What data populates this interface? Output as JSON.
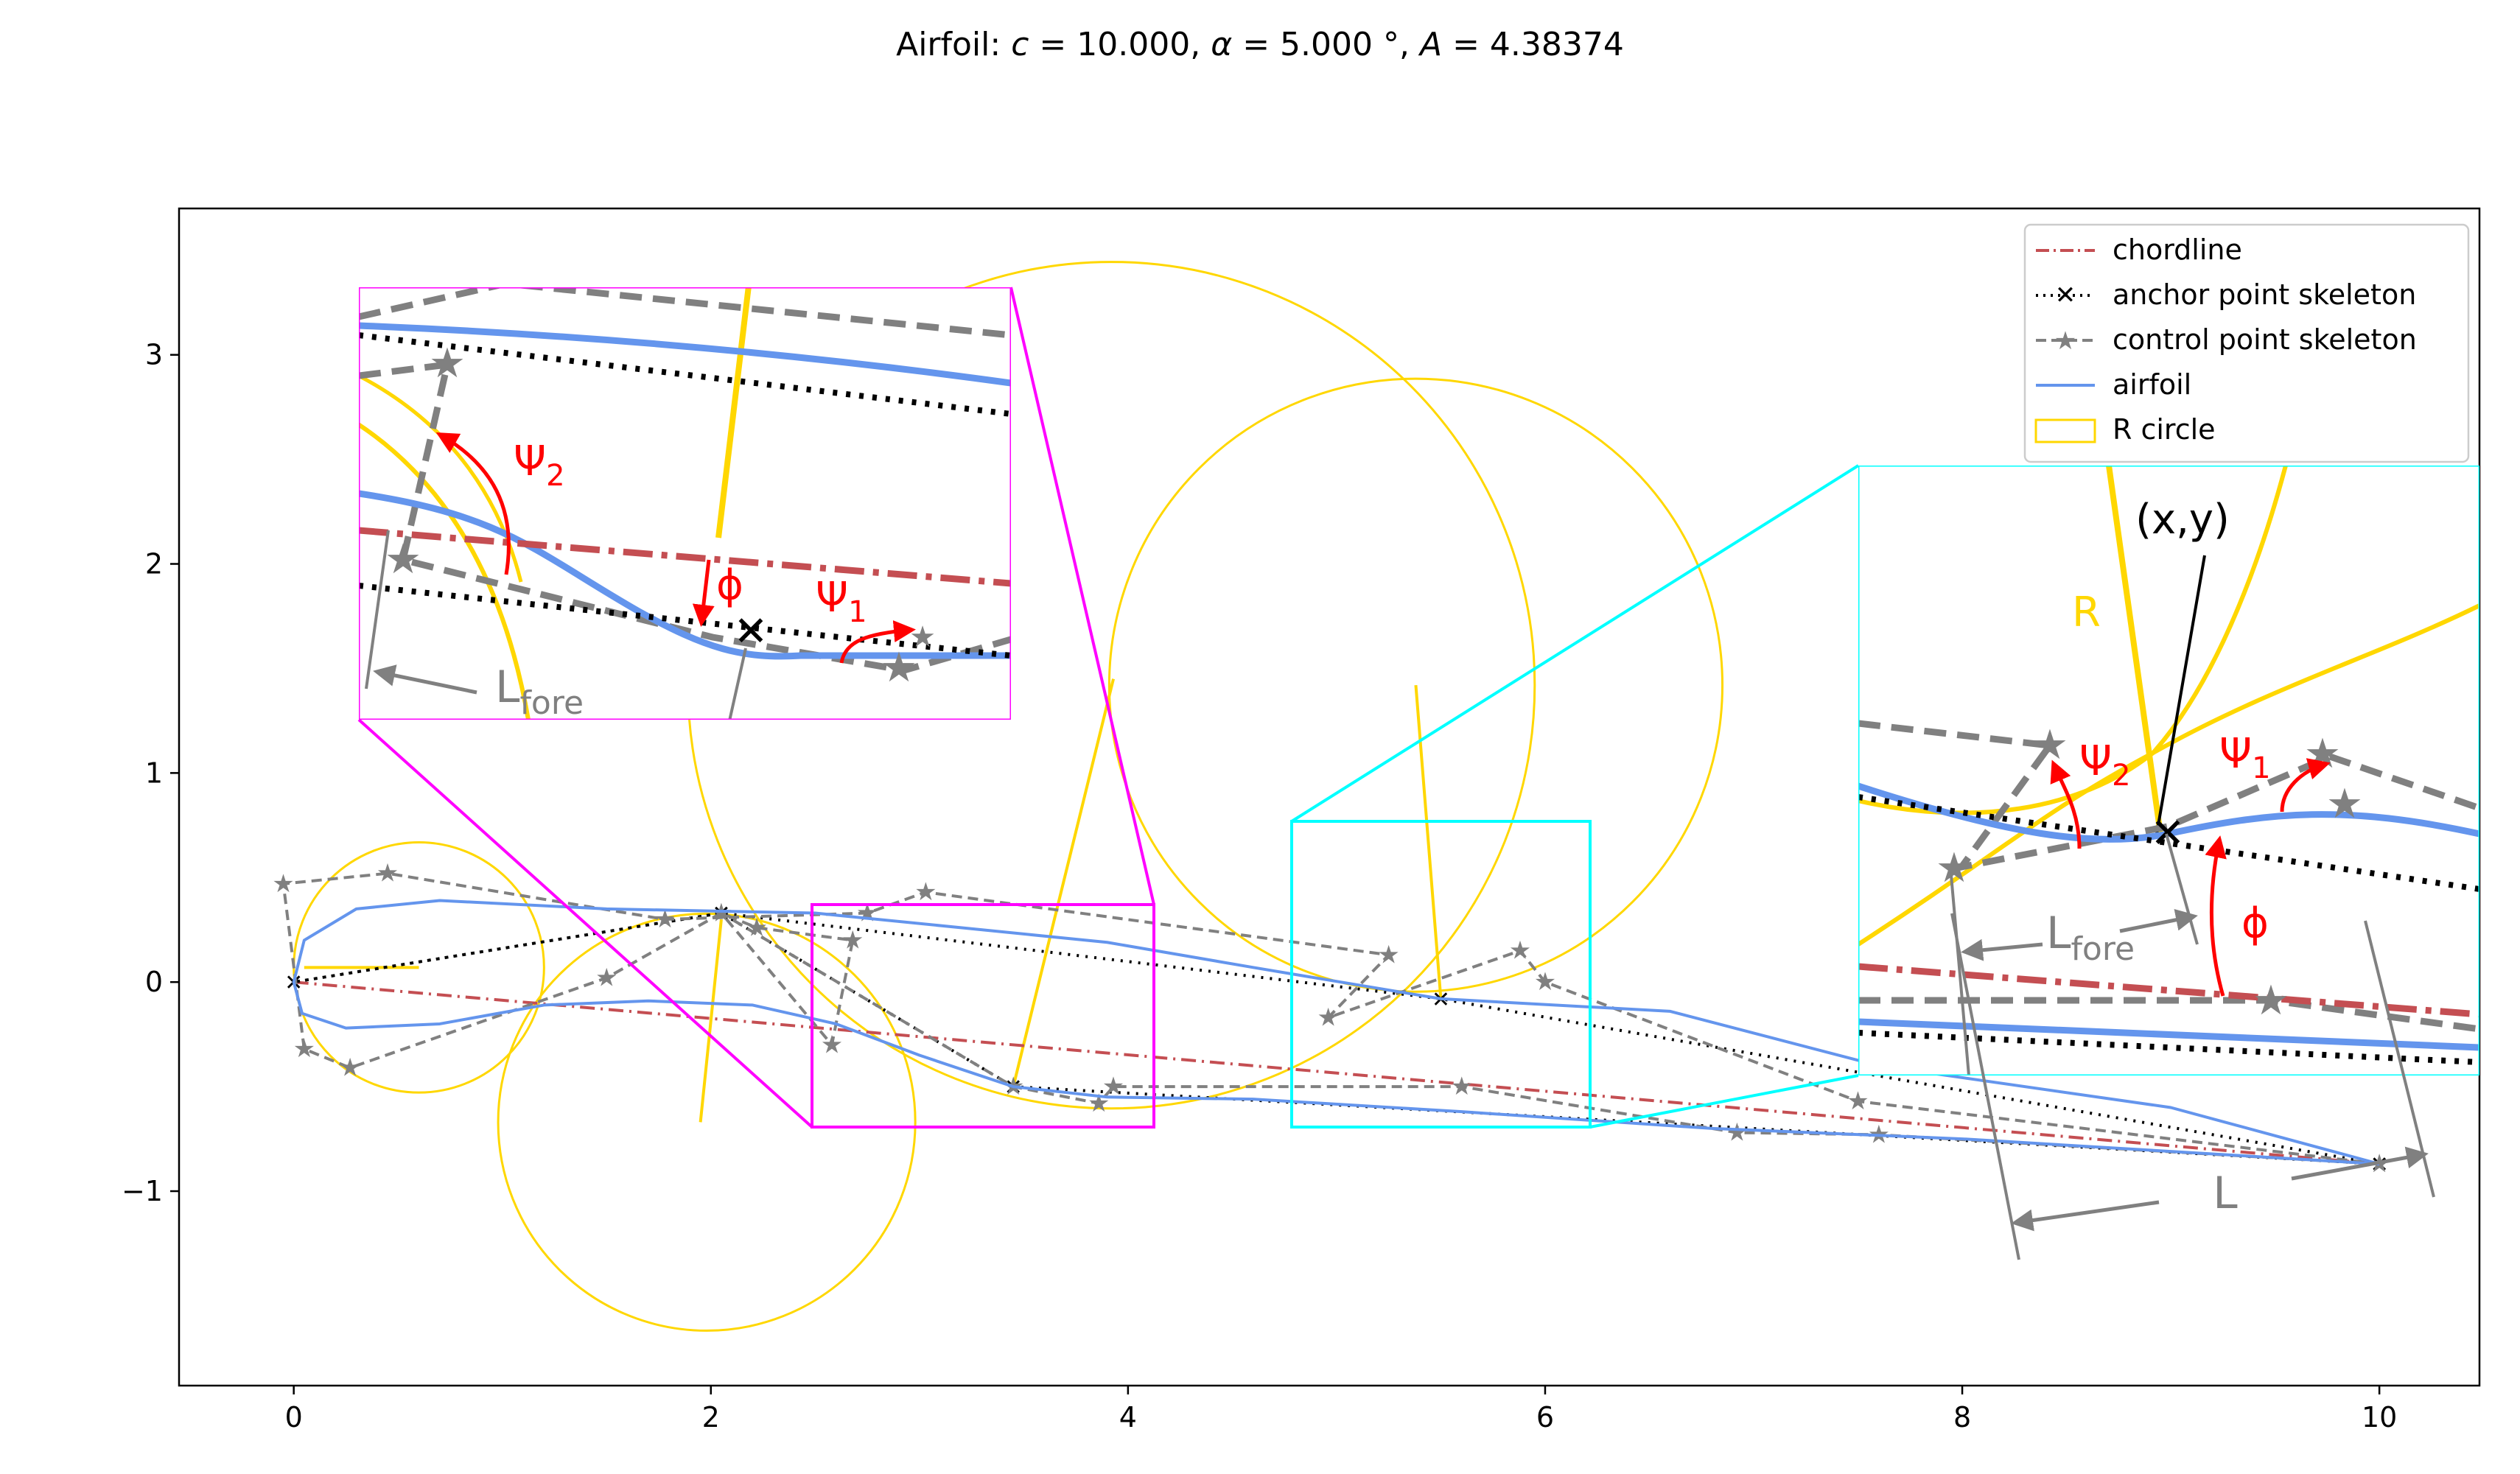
{
  "chart_data": {
    "type": "line",
    "title": "Airfoil: c = 10.000, α = 5.000 °, A = 4.38374",
    "title_parts": {
      "prefix": "Airfoil: ",
      "c_sym": "c",
      "c_val": " = 10.000, ",
      "alpha_sym": "α",
      "alpha_val": " = 5.000 °, ",
      "a_sym": "A",
      "a_val": " = 4.38374"
    },
    "xlabel": "",
    "ylabel": "",
    "xlim": [
      -0.55,
      10.48
    ],
    "ylim": [
      -1.93,
      3.7
    ],
    "grid": false,
    "legend_position": "top-right",
    "x_ticks": [
      0,
      2,
      4,
      6,
      8,
      10
    ],
    "x_tick_labels": [
      "0",
      "2",
      "4",
      "6",
      "8",
      "10"
    ],
    "y_ticks": [
      -1,
      0,
      1,
      2,
      3
    ],
    "y_tick_labels": [
      "−1",
      "0",
      "1",
      "2",
      "3"
    ],
    "colors": {
      "chordline": "#c44e52",
      "anchor": "#000000",
      "control": "#808080",
      "airfoil": "#6495ed",
      "r_circle": "#ffd700",
      "annot_red": "#ff0000",
      "inset1": "#ff00ff",
      "inset2": "#00ffff"
    },
    "series": [
      {
        "name": "chordline",
        "style": "dashdot",
        "x": [
          0,
          10
        ],
        "y": [
          0,
          -0.87
        ]
      },
      {
        "name": "anchor point skeleton",
        "style": "dotted-x",
        "x": [
          10,
          5.5,
          2.05,
          0,
          2.05,
          3.45,
          10
        ],
        "y": [
          -0.87,
          -0.08,
          0.33,
          0,
          0.33,
          -0.5,
          -0.87
        ]
      },
      {
        "name": "control point skeleton",
        "style": "dashed-star",
        "x": [
          10,
          7.5,
          6.0,
          5.88,
          4.96,
          5.25,
          3.03,
          2.75,
          1.78,
          0.45,
          -0.05,
          0.05,
          0.27,
          1.5,
          2.05,
          2.22,
          2.68,
          2.58,
          2.05,
          3.45,
          3.86,
          3.93,
          5.6,
          6.92,
          7.6,
          10
        ],
        "y": [
          -0.87,
          -0.57,
          0.0,
          0.15,
          -0.17,
          0.13,
          0.43,
          0.33,
          0.3,
          0.52,
          0.47,
          -0.32,
          -0.41,
          0.02,
          0.33,
          0.26,
          0.2,
          -0.3,
          0.33,
          -0.5,
          -0.58,
          -0.5,
          -0.5,
          -0.72,
          -0.73,
          -0.87
        ]
      },
      {
        "name": "airfoil",
        "style": "solid",
        "x": [
          10,
          9.0,
          7.6,
          6.6,
          5.5,
          4.6,
          3.9,
          3.2,
          2.5,
          1.5,
          0.7,
          0.3,
          0.05,
          0,
          0.04,
          0.25,
          0.7,
          1.2,
          1.7,
          2.2,
          2.6,
          3.0,
          3.45,
          3.9,
          4.6,
          5.6,
          6.8,
          8.0,
          10
        ],
        "y": [
          -0.87,
          -0.6,
          -0.4,
          -0.14,
          -0.08,
          0.07,
          0.19,
          0.26,
          0.33,
          0.35,
          0.39,
          0.35,
          0.2,
          0,
          -0.15,
          -0.22,
          -0.2,
          -0.11,
          -0.09,
          -0.11,
          -0.2,
          -0.35,
          -0.5,
          -0.55,
          -0.56,
          -0.62,
          -0.7,
          -0.75,
          -0.87
        ]
      },
      {
        "name": "R circle",
        "style": "circle",
        "shape": "circles"
      }
    ],
    "circles": [
      {
        "cx": 0.6,
        "cy": 0.07,
        "r": 0.6
      },
      {
        "cx": 1.98,
        "cy": -0.67,
        "r": 1.0
      },
      {
        "cx": 3.92,
        "cy": 1.42,
        "r": 2.03
      },
      {
        "cx": 5.38,
        "cy": 1.42,
        "r": 1.47
      }
    ],
    "legend": [
      "chordline",
      "anchor point skeleton",
      "control point skeleton",
      "airfoil",
      "R circle"
    ],
    "annotations": {
      "psi": "Ψ",
      "sub1": "1",
      "sub2": "2",
      "phi": "ϕ",
      "l_letter": "L",
      "fore": "fore",
      "l_total": "L",
      "xy": "(x,y)",
      "r": "R"
    }
  }
}
